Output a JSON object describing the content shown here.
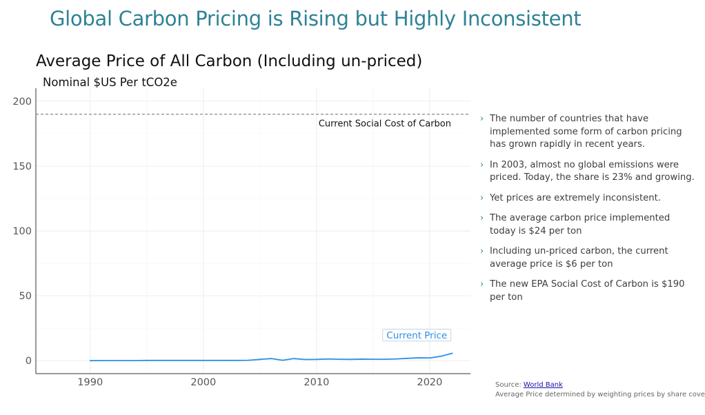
{
  "slide": {
    "title": "Global Carbon Pricing is Rising but Highly Inconsistent"
  },
  "bullets": [
    "The number of countries that have implemented some form of carbon pricing has grown rapidly in recent years.",
    "In 2003, almost no global emissions were priced. Today, the share is 23% and growing.",
    "Yet prices are extremely inconsistent.",
    "The average carbon price implemented today is $24 per ton",
    "Including un-priced carbon, the current average price is $6 per ton",
    "The new EPA Social Cost of Carbon is $190 per ton"
  ],
  "bullet_marker": "›",
  "source": {
    "prefix": "Source: ",
    "link_text": "World Bank",
    "note": "Average Price determined by weighting prices by share covered"
  },
  "colors": {
    "title": "#2e8296",
    "line": "#2b8fe6",
    "reference_line": "#888888",
    "grid": "#ebebeb",
    "bullet_marker": "#2e8296"
  },
  "chart_data": {
    "type": "line",
    "title": "Average Price of All Carbon (Including un-priced)",
    "ylabel": "Nominal $US Per tCO2e",
    "xlabel": "",
    "xlim": [
      1985.2,
      2023.6
    ],
    "ylim": [
      -10,
      210
    ],
    "x_ticks": [
      1990,
      2000,
      2010,
      2020
    ],
    "y_ticks": [
      0,
      50,
      100,
      150,
      200
    ],
    "grid": true,
    "series": [
      {
        "name": "Current Price",
        "x": [
          1990,
          1991,
          1992,
          1993,
          1994,
          1995,
          1996,
          1997,
          1998,
          1999,
          2000,
          2001,
          2002,
          2003,
          2004,
          2005,
          2006,
          2007,
          2008,
          2009,
          2010,
          2011,
          2012,
          2013,
          2014,
          2015,
          2016,
          2017,
          2018,
          2019,
          2020,
          2021,
          2022
        ],
        "y": [
          0.0,
          0.1,
          0.1,
          0.1,
          0.1,
          0.2,
          0.2,
          0.2,
          0.2,
          0.2,
          0.2,
          0.2,
          0.2,
          0.2,
          0.3,
          1.0,
          1.6,
          0.3,
          1.6,
          0.9,
          1.0,
          1.3,
          1.1,
          1.0,
          1.2,
          1.1,
          1.1,
          1.3,
          1.8,
          2.2,
          2.1,
          3.4,
          5.7
        ]
      }
    ],
    "reference_line": {
      "y": 190,
      "label": "Current Social Cost of Carbon"
    },
    "end_label": "Current Price"
  }
}
